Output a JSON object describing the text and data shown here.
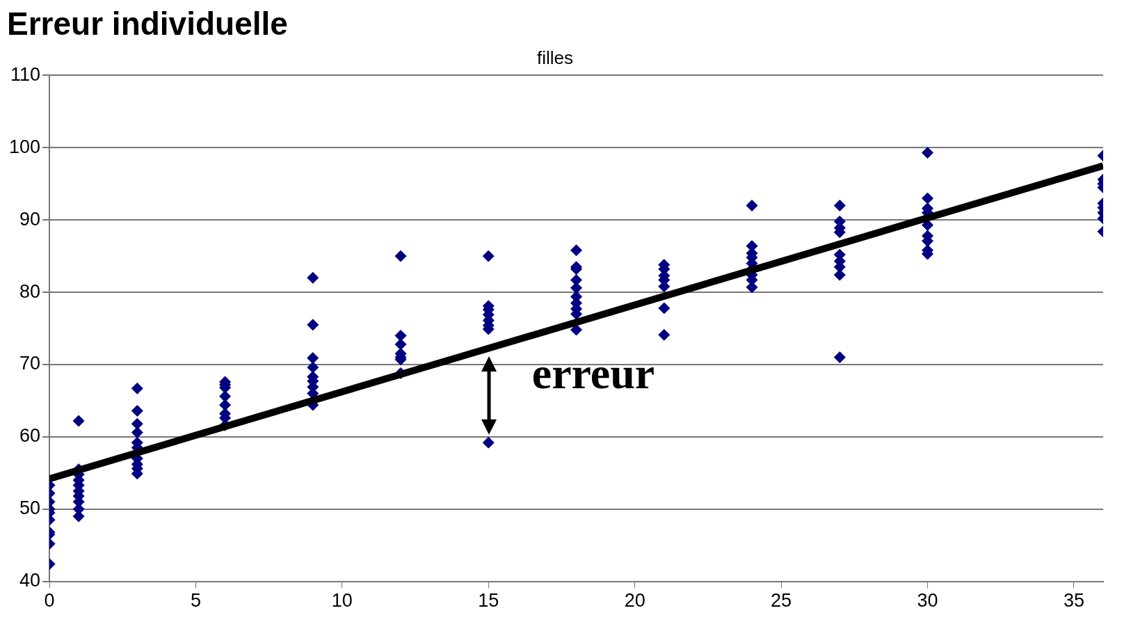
{
  "chart_data": {
    "type": "scatter",
    "title": "Erreur individuelle",
    "subtitle": "filles",
    "xlim": [
      0,
      36
    ],
    "xticks": [
      0,
      5,
      10,
      15,
      20,
      25,
      30,
      35
    ],
    "ylim": [
      40,
      110
    ],
    "yticks": [
      40,
      50,
      60,
      70,
      80,
      90,
      100,
      110
    ],
    "grid": "y",
    "legend": false,
    "marker": "diamond",
    "annotations": [
      "erreur"
    ],
    "series": [
      {
        "color": "#000080",
        "x": [
          0,
          0,
          0,
          0,
          0,
          0,
          0,
          0,
          0,
          0,
          1,
          1,
          1,
          1,
          1,
          1,
          1,
          1,
          1,
          1,
          3,
          3,
          3,
          3,
          3,
          3,
          3,
          3,
          3,
          3,
          6,
          6,
          6,
          6,
          6,
          6,
          6,
          6,
          9,
          9,
          9,
          9,
          9,
          9,
          9,
          9,
          9,
          12,
          12,
          12,
          12,
          12,
          12,
          12,
          15,
          15,
          15,
          15,
          15,
          15,
          15,
          15,
          18,
          18,
          18,
          18,
          18,
          18,
          18,
          18,
          18,
          18,
          21,
          21,
          21,
          21,
          21,
          21,
          21,
          24,
          24,
          24,
          24,
          24,
          24,
          24,
          24,
          24,
          27,
          27,
          27,
          27,
          27,
          27,
          27,
          27,
          27,
          30,
          30,
          30,
          30,
          30,
          30,
          30,
          30,
          30,
          36,
          36,
          36,
          36,
          36,
          36,
          36,
          36,
          36
        ],
        "values": [
          53.3,
          52.2,
          51,
          50,
          49.5,
          48.5,
          46.8,
          46.5,
          45.2,
          42.4,
          62.2,
          55.5,
          54.8,
          54,
          53.3,
          52.5,
          51.8,
          51,
          50,
          49,
          66.7,
          63.6,
          61.8,
          60.6,
          59.2,
          58.5,
          57,
          56.2,
          55.6,
          54.9,
          67.6,
          67.2,
          66.8,
          65.6,
          64.4,
          63.2,
          62.6,
          61.6,
          82,
          75.5,
          70.9,
          69.6,
          68.3,
          67.7,
          66.9,
          66,
          64.4,
          85,
          74,
          72.8,
          71.5,
          71,
          70.7,
          68.8,
          85,
          78.1,
          77.6,
          76.9,
          76.1,
          75.4,
          74.9,
          59.2,
          85.8,
          83.5,
          83.2,
          81.7,
          80.6,
          79.4,
          78.5,
          77.7,
          77,
          74.8,
          83.8,
          83.2,
          82.3,
          81.7,
          80.8,
          77.8,
          74.1,
          92,
          86.4,
          85.4,
          84.8,
          84,
          83.2,
          82.4,
          81.7,
          80.7,
          92,
          89.8,
          88.9,
          88.3,
          85.2,
          84.3,
          83.5,
          82.4,
          71,
          99.3,
          93,
          91.6,
          91,
          89.3,
          87.8,
          87.1,
          85.8,
          85.3,
          98.9,
          95.6,
          95,
          94.5,
          92.3,
          91.7,
          91,
          90.2,
          88.4
        ]
      },
      {
        "type": "line",
        "color": "#000000",
        "x": [
          0,
          36
        ],
        "values": [
          54.2,
          97.5
        ],
        "marker": "none"
      }
    ]
  }
}
